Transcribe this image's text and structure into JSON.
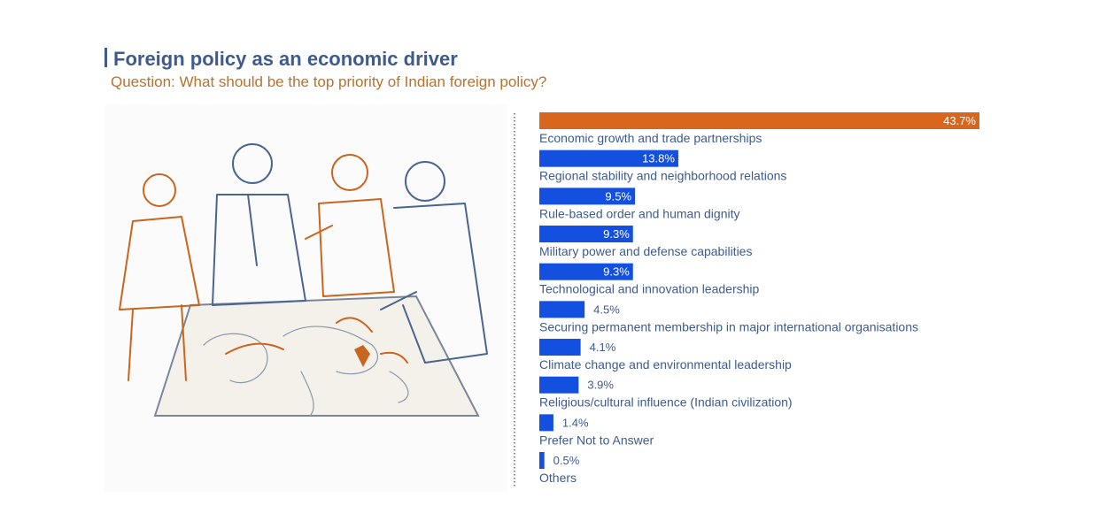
{
  "chart_data": {
    "type": "hbar",
    "title": "Foreign policy as an economic driver",
    "subtitle": "Question: What should be the top priority of Indian foreign policy?",
    "categories": [
      "Economic growth and trade partnerships",
      "Regional stability and neighborhood relations",
      "Rule-based order and human dignity",
      "Military power and defense capabilities",
      "Technological and innovation leadership",
      "Securing permanent membership in major international organisations",
      "Climate change and environmental leadership",
      "Religious/cultural influence (Indian civilization)",
      "Prefer Not to Answer",
      "Others"
    ],
    "values": [
      43.7,
      13.8,
      9.5,
      9.3,
      9.3,
      4.5,
      4.1,
      3.9,
      1.4,
      0.5
    ],
    "value_labels": [
      "43.7%",
      "13.8%",
      "9.5%",
      "9.3%",
      "9.3%",
      "4.5%",
      "4.1%",
      "3.9%",
      "1.4%",
      "0.5%"
    ],
    "colors": [
      "#d8661c",
      "#1450e0",
      "#1450e0",
      "#1450e0",
      "#1450e0",
      "#1450e0",
      "#1450e0",
      "#1450e0",
      "#1450e0",
      "#1450e0"
    ]
  }
}
